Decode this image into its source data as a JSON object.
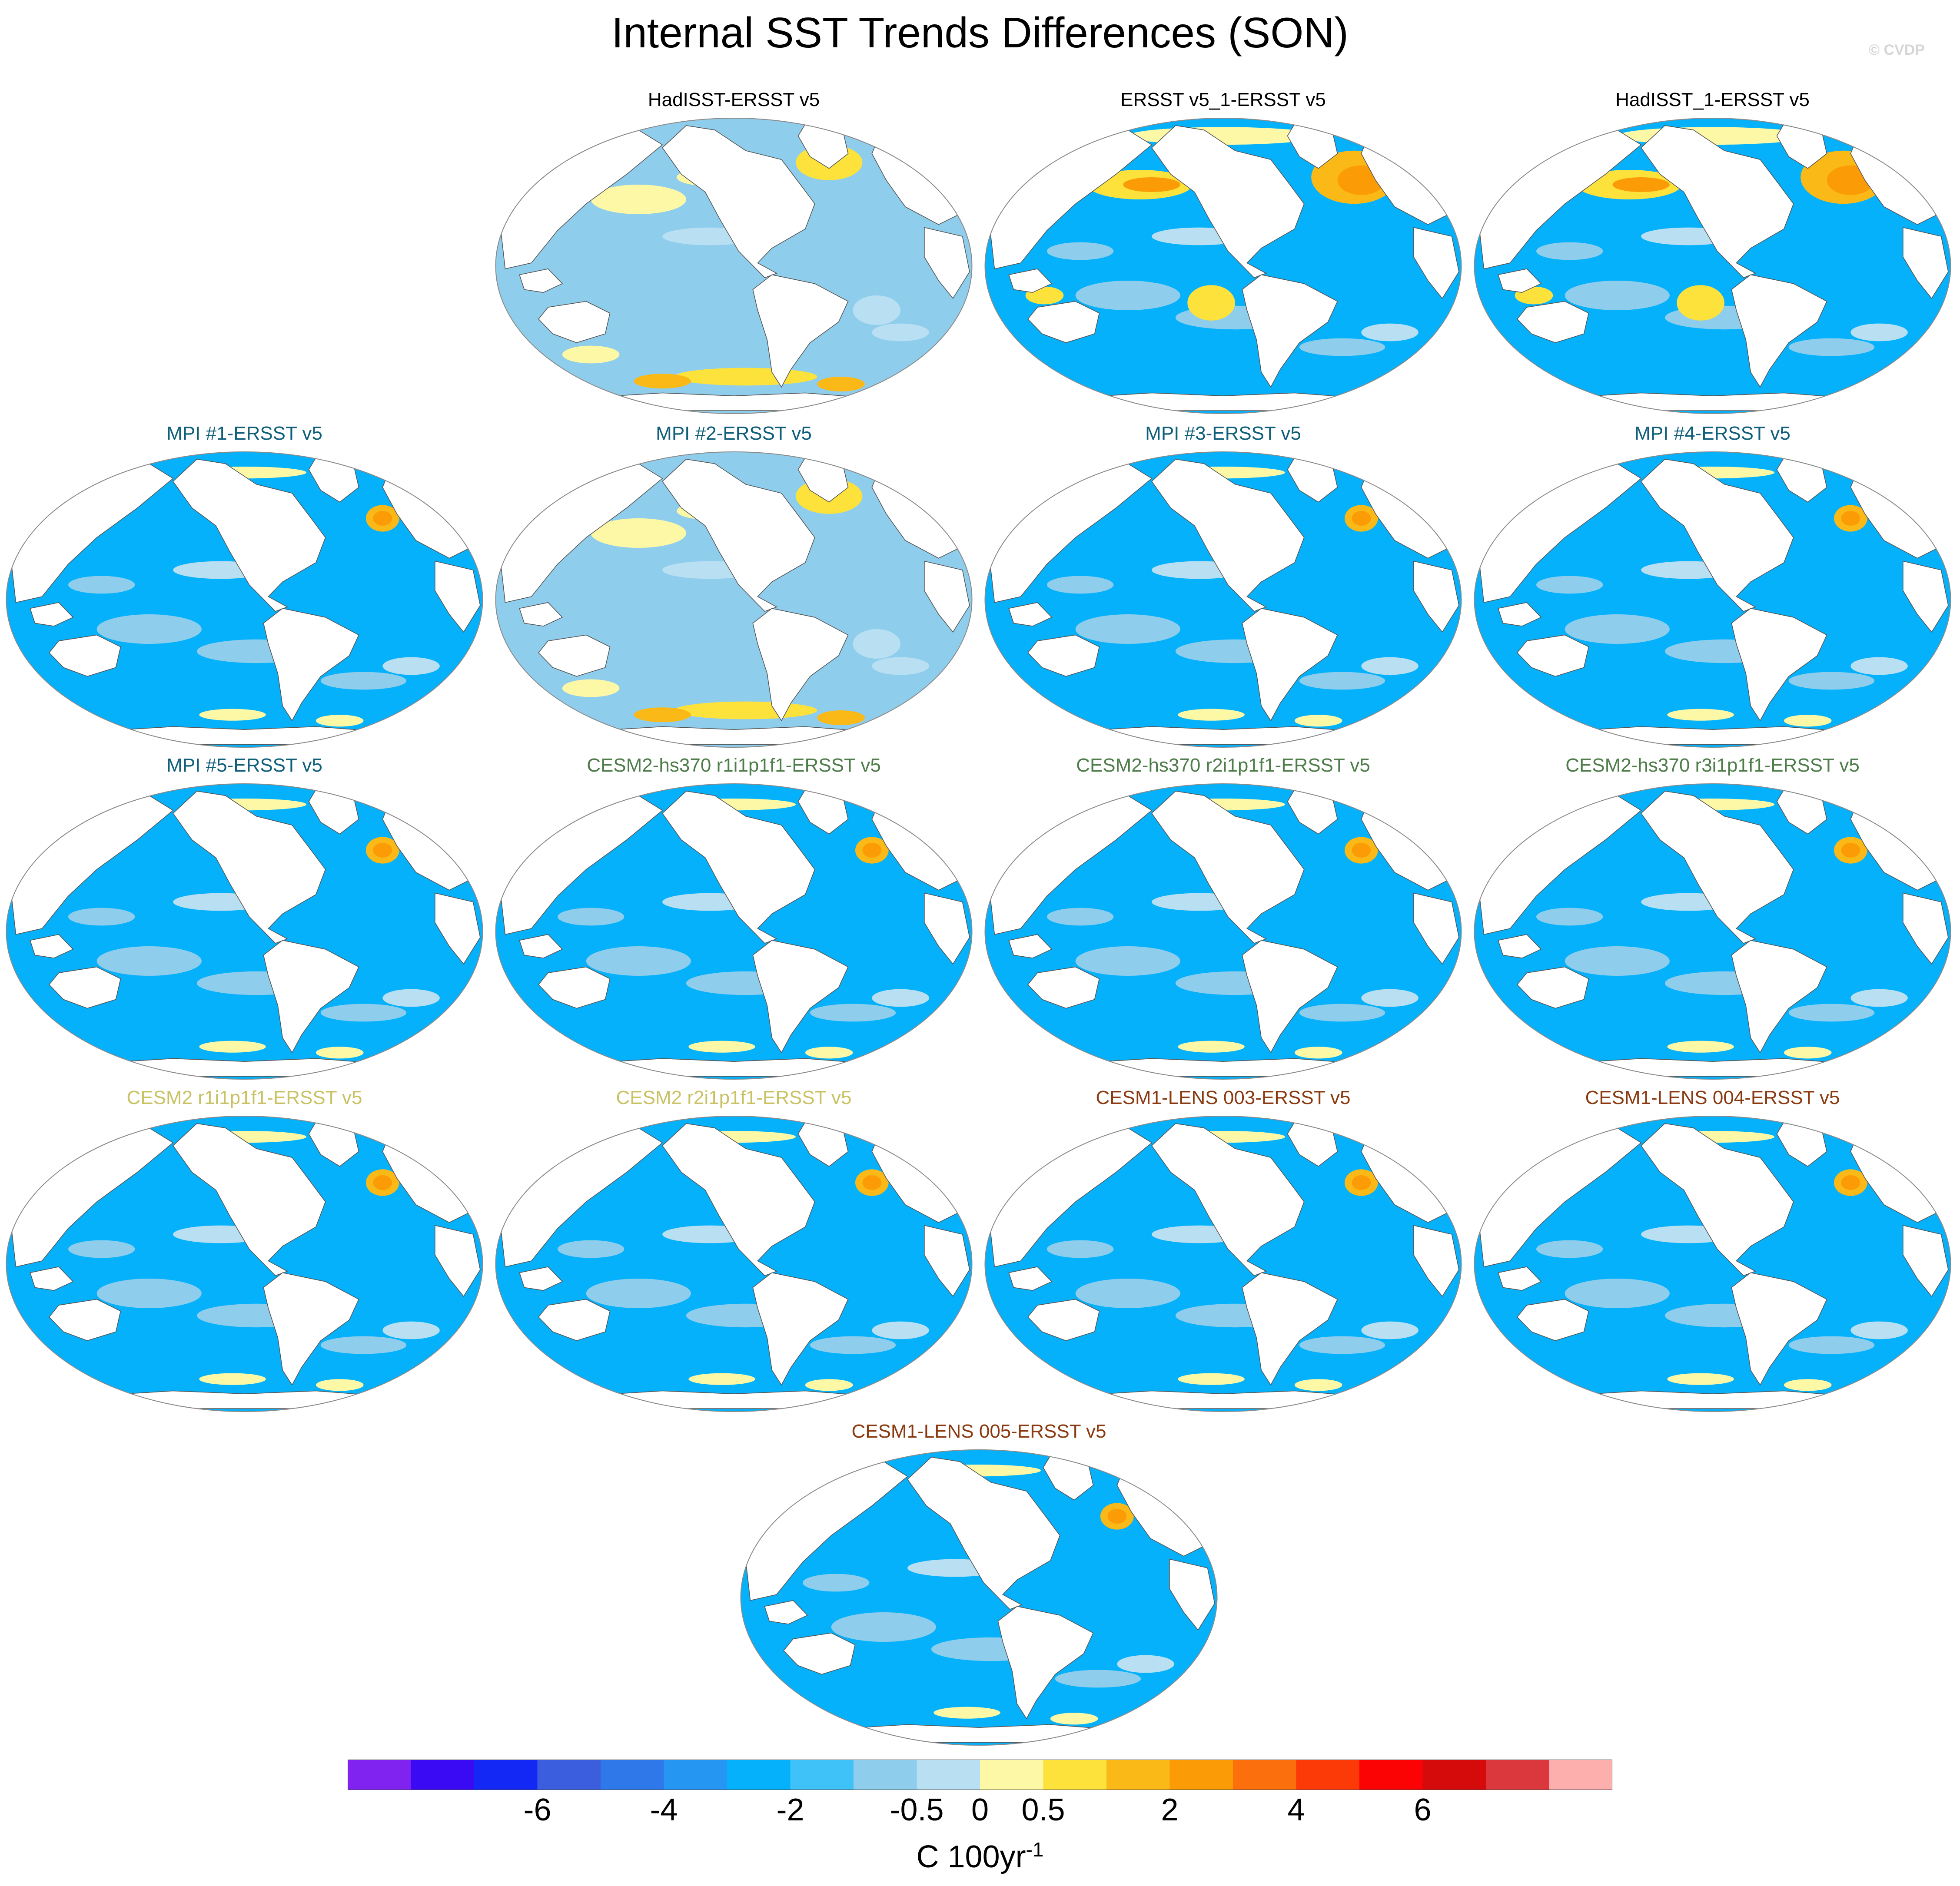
{
  "title": "Internal SST Trends Differences (SON)",
  "watermark": "© CVDP",
  "panels": [
    {
      "title": "HadISST-ERSST v5",
      "color": "#000000",
      "style": "mixed"
    },
    {
      "title": "ERSST v5_1-ERSST v5",
      "color": "#000000",
      "style": "warm-north"
    },
    {
      "title": "HadISST_1-ERSST v5",
      "color": "#000000",
      "style": "warm-north"
    },
    {
      "title": "MPI #1-ERSST v5",
      "color": "#0f5e7a",
      "style": "cool"
    },
    {
      "title": "MPI #2-ERSST v5",
      "color": "#0f5e7a",
      "style": "mixed"
    },
    {
      "title": "MPI #3-ERSST v5",
      "color": "#0f5e7a",
      "style": "cool"
    },
    {
      "title": "MPI #4-ERSST v5",
      "color": "#0f5e7a",
      "style": "cool"
    },
    {
      "title": "MPI #5-ERSST v5",
      "color": "#0f5e7a",
      "style": "cool"
    },
    {
      "title": "CESM2-hs370 r1i1p1f1-ERSST v5",
      "color": "#4e7d4a",
      "style": "cool"
    },
    {
      "title": "CESM2-hs370 r2i1p1f1-ERSST v5",
      "color": "#4e7d4a",
      "style": "cool"
    },
    {
      "title": "CESM2-hs370 r3i1p1f1-ERSST v5",
      "color": "#4e7d4a",
      "style": "cool"
    },
    {
      "title": "CESM2 r1i1p1f1-ERSST v5",
      "color": "#c9c264",
      "style": "cool"
    },
    {
      "title": "CESM2 r2i1p1f1-ERSST v5",
      "color": "#c9c264",
      "style": "cool"
    },
    {
      "title": "CESM1-LENS 003-ERSST v5",
      "color": "#8a3a10",
      "style": "cool"
    },
    {
      "title": "CESM1-LENS 004-ERSST v5",
      "color": "#8a3a10",
      "style": "cool"
    },
    {
      "title": "CESM1-LENS 005-ERSST v5",
      "color": "#8a3a10",
      "style": "cool"
    }
  ],
  "colorbar": {
    "colors": [
      "#8023f0",
      "#3a0af5",
      "#1328f5",
      "#3b5edf",
      "#2f78ea",
      "#2596f2",
      "#05b1fa",
      "#3fc2f7",
      "#8fcdec",
      "#b8dff2",
      "#fdf8a6",
      "#fde23c",
      "#fbb917",
      "#fb9c07",
      "#fb700d",
      "#fb3a07",
      "#fb0305",
      "#d50a0a",
      "#da383c",
      "#fdafad"
    ],
    "labels": [
      "-6",
      "-4",
      "-2",
      "-0.5",
      "0",
      "0.5",
      "2",
      "4",
      "6"
    ],
    "units": "C 100yr",
    "units_exp": "-1"
  }
}
